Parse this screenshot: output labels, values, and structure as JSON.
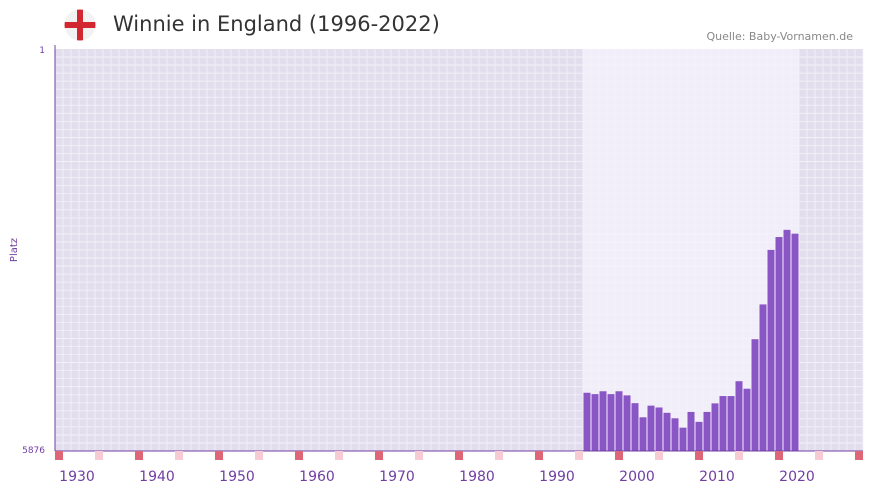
{
  "header": {
    "title": "Winnie in England (1996-2022)",
    "source": "Quelle: Baby-Vornamen.de",
    "flag_icon": "england-flag-icon"
  },
  "colors": {
    "bar": "#8a55c4",
    "plot_bg": "#e3deee",
    "highlight_bg": "#f1eef9",
    "grid": "#f4f2f9",
    "axis": "#6f3fa3",
    "tick_label": "#6f3fa3",
    "decade_marker": "#dd6677",
    "half_marker": "#f6ccd4",
    "flag_red": "#d22630"
  },
  "chart_data": {
    "type": "bar",
    "title": "Winnie in England (1996-2022)",
    "xlabel": "",
    "ylabel": "Platz",
    "y_inverted": true,
    "ylim": [
      1,
      5876
    ],
    "y_tick_labels": [
      "1",
      "5876"
    ],
    "xlim": [
      1928,
      2029
    ],
    "x_ticks": [
      1930,
      1940,
      1950,
      1960,
      1970,
      1980,
      1990,
      2000,
      2010,
      2020
    ],
    "highlight_range": [
      1994,
      2021
    ],
    "x": [
      1994,
      1995,
      1996,
      1997,
      1998,
      1999,
      2000,
      2001,
      2002,
      2003,
      2004,
      2005,
      2006,
      2007,
      2008,
      2009,
      2010,
      2011,
      2012,
      2013,
      2014,
      2015,
      2016,
      2017,
      2018,
      2019,
      2020
    ],
    "values": [
      5025,
      5045,
      5003,
      5045,
      5003,
      5063,
      5177,
      5383,
      5213,
      5240,
      5318,
      5398,
      5535,
      5305,
      5450,
      5305,
      5180,
      5073,
      5073,
      4856,
      4966,
      4242,
      3734,
      2937,
      2749,
      2644,
      2700
    ]
  }
}
